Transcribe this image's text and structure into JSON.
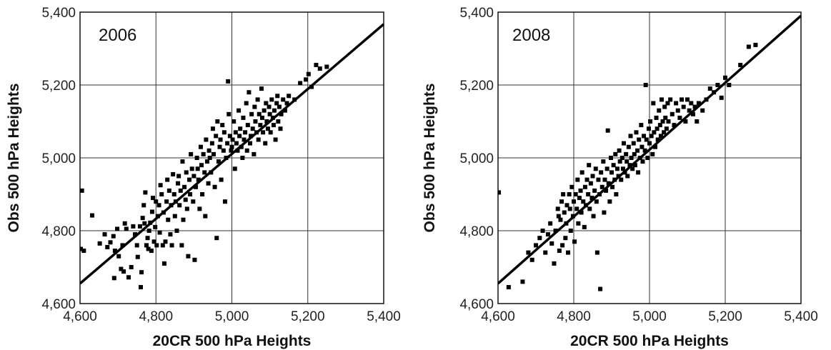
{
  "chart_data": [
    {
      "type": "scatter",
      "title": "",
      "annotation": "2006",
      "xlabel": "20CR 500 hPa Heights",
      "ylabel": "Obs 500 hPa Heights",
      "xlim": [
        4600,
        5400
      ],
      "ylim": [
        4600,
        5400
      ],
      "xticks": [
        "4,600",
        "4,800",
        "5,000",
        "5,200",
        "5,400"
      ],
      "yticks": [
        "4,600",
        "4,800",
        "5,000",
        "5,200",
        "5,400"
      ],
      "grid": true,
      "fit_line": [
        [
          4600,
          4655
        ],
        [
          5400,
          5367
        ]
      ],
      "points": [
        [
          4602,
          4750
        ],
        [
          4610,
          4745
        ],
        [
          4605,
          4910
        ],
        [
          4632,
          4842
        ],
        [
          4652,
          4765
        ],
        [
          4665,
          4790
        ],
        [
          4672,
          4755
        ],
        [
          4680,
          4768
        ],
        [
          4688,
          4785
        ],
        [
          4692,
          4745
        ],
        [
          4698,
          4805
        ],
        [
          4702,
          4730
        ],
        [
          4708,
          4695
        ],
        [
          4712,
          4760
        ],
        [
          4718,
          4820
        ],
        [
          4722,
          4805
        ],
        [
          4690,
          4670
        ],
        [
          4715,
          4688
        ],
        [
          4728,
          4672
        ],
        [
          4735,
          4700
        ],
        [
          4740,
          4812
        ],
        [
          4745,
          4790
        ],
        [
          4750,
          4760
        ],
        [
          4752,
          4728
        ],
        [
          4758,
          4812
        ],
        [
          4760,
          4645
        ],
        [
          4762,
          4686
        ],
        [
          4765,
          4835
        ],
        [
          4768,
          4870
        ],
        [
          4770,
          4820
        ],
        [
          4772,
          4905
        ],
        [
          4775,
          4760
        ],
        [
          4778,
          4780
        ],
        [
          4780,
          4750
        ],
        [
          4782,
          4800
        ],
        [
          4785,
          4822
        ],
        [
          4788,
          4745
        ],
        [
          4790,
          4852
        ],
        [
          4792,
          4890
        ],
        [
          4795,
          4770
        ],
        [
          4798,
          4810
        ],
        [
          4800,
          4880
        ],
        [
          4802,
          4760
        ],
        [
          4805,
          4840
        ],
        [
          4808,
          4870
        ],
        [
          4810,
          4795
        ],
        [
          4812,
          4925
        ],
        [
          4815,
          4900
        ],
        [
          4818,
          4760
        ],
        [
          4820,
          4850
        ],
        [
          4822,
          4710
        ],
        [
          4825,
          4770
        ],
        [
          4828,
          4880
        ],
        [
          4830,
          4940
        ],
        [
          4832,
          4830
        ],
        [
          4835,
          4910
        ],
        [
          4838,
          4790
        ],
        [
          4840,
          4870
        ],
        [
          4842,
          4760
        ],
        [
          4845,
          4955
        ],
        [
          4848,
          4900
        ],
        [
          4850,
          4840
        ],
        [
          4852,
          4880
        ],
        [
          4855,
          4800
        ],
        [
          4858,
          4930
        ],
        [
          4860,
          4950
        ],
        [
          4862,
          4870
        ],
        [
          4865,
          4910
        ],
        [
          4868,
          4760
        ],
        [
          4870,
          4990
        ],
        [
          4872,
          4830
        ],
        [
          4875,
          4920
        ],
        [
          4878,
          4885
        ],
        [
          4880,
          4960
        ],
        [
          4882,
          4860
        ],
        [
          4885,
          4730
        ],
        [
          4888,
          4940
        ],
        [
          4890,
          4900
        ],
        [
          4892,
          5010
        ],
        [
          4895,
          4970
        ],
        [
          4898,
          4880
        ],
        [
          4900,
          4950
        ],
        [
          4902,
          4720
        ],
        [
          4905,
          4920
        ],
        [
          4908,
          5000
        ],
        [
          4910,
          4970
        ],
        [
          4912,
          4940
        ],
        [
          4915,
          4860
        ],
        [
          4918,
          5030
        ],
        [
          4920,
          4980
        ],
        [
          4922,
          4900
        ],
        [
          4925,
          5010
        ],
        [
          4928,
          4960
        ],
        [
          4930,
          4840
        ],
        [
          4932,
          5050
        ],
        [
          4935,
          4990
        ],
        [
          4938,
          4930
        ],
        [
          4940,
          5020
        ],
        [
          4942,
          5000
        ],
        [
          4945,
          4960
        ],
        [
          4948,
          5040
        ],
        [
          4950,
          5080
        ],
        [
          4952,
          5010
        ],
        [
          4955,
          4920
        ],
        [
          4958,
          5060
        ],
        [
          4960,
          4780
        ],
        [
          4962,
          5100
        ],
        [
          4965,
          4990
        ],
        [
          4968,
          5030
        ],
        [
          4970,
          5050
        ],
        [
          4972,
          4940
        ],
        [
          4975,
          5090
        ],
        [
          4978,
          5020
        ],
        [
          4980,
          5070
        ],
        [
          4982,
          4880
        ],
        [
          4985,
          5000
        ],
        [
          4988,
          5040
        ],
        [
          4990,
          5210
        ],
        [
          4992,
          5120
        ],
        [
          4995,
          5060
        ],
        [
          4998,
          5020
        ],
        [
          5000,
          5030
        ],
        [
          5002,
          5050
        ],
        [
          5005,
          5100
        ],
        [
          5008,
          4970
        ],
        [
          5010,
          5070
        ],
        [
          5012,
          5040
        ],
        [
          5015,
          5020
        ],
        [
          5018,
          5130
        ],
        [
          5020,
          5060
        ],
        [
          5022,
          5080
        ],
        [
          5025,
          5030
        ],
        [
          5028,
          5000
        ],
        [
          5030,
          5110
        ],
        [
          5032,
          5050
        ],
        [
          5035,
          5070
        ],
        [
          5038,
          5150
        ],
        [
          5040,
          5020
        ],
        [
          5042,
          5090
        ],
        [
          5045,
          5180
        ],
        [
          5048,
          5040
        ],
        [
          5050,
          5060
        ],
        [
          5052,
          5120
        ],
        [
          5055,
          5080
        ],
        [
          5058,
          5010
        ],
        [
          5060,
          5140
        ],
        [
          5062,
          5100
        ],
        [
          5065,
          5070
        ],
        [
          5068,
          5160
        ],
        [
          5070,
          5050
        ],
        [
          5072,
          5120
        ],
        [
          5075,
          5090
        ],
        [
          5078,
          5190
        ],
        [
          5080,
          5110
        ],
        [
          5082,
          5070
        ],
        [
          5085,
          5130
        ],
        [
          5088,
          5040
        ],
        [
          5090,
          5150
        ],
        [
          5092,
          5100
        ],
        [
          5095,
          5080
        ],
        [
          5098,
          5140
        ],
        [
          5100,
          5120
        ],
        [
          5102,
          5070
        ],
        [
          5105,
          5160
        ],
        [
          5108,
          5110
        ],
        [
          5110,
          5090
        ],
        [
          5112,
          5130
        ],
        [
          5115,
          5050
        ],
        [
          5118,
          5150
        ],
        [
          5120,
          5170
        ],
        [
          5122,
          5100
        ],
        [
          5125,
          5140
        ],
        [
          5128,
          5080
        ],
        [
          5130,
          5120
        ],
        [
          5135,
          5160
        ],
        [
          5140,
          5130
        ],
        [
          5145,
          5150
        ],
        [
          5150,
          5170
        ],
        [
          5165,
          5160
        ],
        [
          5180,
          5205
        ],
        [
          5195,
          5215
        ],
        [
          5202,
          5230
        ],
        [
          5210,
          5195
        ],
        [
          5222,
          5255
        ],
        [
          5232,
          5245
        ],
        [
          5250,
          5250
        ]
      ]
    },
    {
      "type": "scatter",
      "title": "",
      "annotation": "2008",
      "xlabel": "20CR 500 hPa Heights",
      "ylabel": "Obs 500 hPa Heights",
      "xlim": [
        4600,
        5400
      ],
      "ylim": [
        4600,
        5400
      ],
      "xticks": [
        "4,600",
        "4,800",
        "5,000",
        "5,200",
        "5,400"
      ],
      "yticks": [
        "4,600",
        "4,800",
        "5,000",
        "5,200",
        "5,400"
      ],
      "grid": true,
      "fit_line": [
        [
          4600,
          4655
        ],
        [
          5400,
          5390
        ]
      ],
      "points": [
        [
          4602,
          4905
        ],
        [
          4628,
          4645
        ],
        [
          4665,
          4660
        ],
        [
          4680,
          4740
        ],
        [
          4690,
          4720
        ],
        [
          4700,
          4760
        ],
        [
          4710,
          4780
        ],
        [
          4718,
          4800
        ],
        [
          4725,
          4740
        ],
        [
          4732,
          4790
        ],
        [
          4738,
          4820
        ],
        [
          4742,
          4765
        ],
        [
          4748,
          4710
        ],
        [
          4752,
          4800
        ],
        [
          4758,
          4860
        ],
        [
          4760,
          4840
        ],
        [
          4762,
          4745
        ],
        [
          4765,
          4830
        ],
        [
          4768,
          4880
        ],
        [
          4770,
          4760
        ],
        [
          4772,
          4900
        ],
        [
          4775,
          4850
        ],
        [
          4778,
          4780
        ],
        [
          4780,
          4820
        ],
        [
          4782,
          4870
        ],
        [
          4785,
          4740
        ],
        [
          4788,
          4900
        ],
        [
          4790,
          4860
        ],
        [
          4792,
          4800
        ],
        [
          4795,
          4920
        ],
        [
          4798,
          4840
        ],
        [
          4800,
          4880
        ],
        [
          4802,
          4770
        ],
        [
          4805,
          4900
        ],
        [
          4808,
          4860
        ],
        [
          4810,
          4940
        ],
        [
          4812,
          4820
        ],
        [
          4815,
          4890
        ],
        [
          4818,
          4910
        ],
        [
          4820,
          4850
        ],
        [
          4822,
          4960
        ],
        [
          4825,
          4880
        ],
        [
          4828,
          4810
        ],
        [
          4830,
          4920
        ],
        [
          4832,
          4870
        ],
        [
          4835,
          4940
        ],
        [
          4838,
          4900
        ],
        [
          4840,
          4980
        ],
        [
          4842,
          4860
        ],
        [
          4845,
          4930
        ],
        [
          4848,
          4890
        ],
        [
          4850,
          4950
        ],
        [
          4852,
          4840
        ],
        [
          4855,
          4910
        ],
        [
          4858,
          4970
        ],
        [
          4860,
          4880
        ],
        [
          4862,
          4740
        ],
        [
          4865,
          4940
        ],
        [
          4868,
          4900
        ],
        [
          4870,
          4640
        ],
        [
          4872,
          4960
        ],
        [
          4875,
          4920
        ],
        [
          4878,
          4990
        ],
        [
          4880,
          4850
        ],
        [
          4882,
          4940
        ],
        [
          4885,
          4910
        ],
        [
          4888,
          4970
        ],
        [
          4890,
          5075
        ],
        [
          4892,
          4930
        ],
        [
          4895,
          4880
        ],
        [
          4898,
          5000
        ],
        [
          4900,
          4960
        ],
        [
          4902,
          4920
        ],
        [
          4905,
          4980
        ],
        [
          4908,
          4940
        ],
        [
          4910,
          5010
        ],
        [
          4912,
          4900
        ],
        [
          4915,
          4970
        ],
        [
          4918,
          4950
        ],
        [
          4920,
          5020
        ],
        [
          4922,
          4990
        ],
        [
          4925,
          4940
        ],
        [
          4928,
          5000
        ],
        [
          4930,
          4970
        ],
        [
          4932,
          5040
        ],
        [
          4935,
          4960
        ],
        [
          4938,
          5010
        ],
        [
          4940,
          4990
        ],
        [
          4942,
          4950
        ],
        [
          4945,
          5030
        ],
        [
          4948,
          4980
        ],
        [
          4950,
          5060
        ],
        [
          4952,
          5000
        ],
        [
          4955,
          4970
        ],
        [
          4958,
          5040
        ],
        [
          4960,
          5010
        ],
        [
          4962,
          4980
        ],
        [
          4965,
          5070
        ],
        [
          4968,
          5020
        ],
        [
          4970,
          4960
        ],
        [
          4972,
          5050
        ],
        [
          4975,
          5000
        ],
        [
          4978,
          5090
        ],
        [
          4980,
          5030
        ],
        [
          4982,
          4990
        ],
        [
          4985,
          5060
        ],
        [
          4988,
          5020
        ],
        [
          4990,
          5200
        ],
        [
          4992,
          5050
        ],
        [
          4995,
          5000
        ],
        [
          4998,
          5080
        ],
        [
          5000,
          5040
        ],
        [
          5002,
          5100
        ],
        [
          5005,
          5060
        ],
        [
          5008,
          5010
        ],
        [
          5010,
          5150
        ],
        [
          5012,
          5070
        ],
        [
          5015,
          5030
        ],
        [
          5018,
          5110
        ],
        [
          5020,
          5080
        ],
        [
          5022,
          5050
        ],
        [
          5025,
          5130
        ],
        [
          5028,
          5090
        ],
        [
          5030,
          5060
        ],
        [
          5032,
          5160
        ],
        [
          5035,
          5100
        ],
        [
          5038,
          5070
        ],
        [
          5040,
          5140
        ],
        [
          5042,
          5110
        ],
        [
          5045,
          5080
        ],
        [
          5048,
          5150
        ],
        [
          5050,
          5100
        ],
        [
          5055,
          5160
        ],
        [
          5060,
          5120
        ],
        [
          5065,
          5090
        ],
        [
          5070,
          5150
        ],
        [
          5075,
          5130
        ],
        [
          5080,
          5110
        ],
        [
          5085,
          5160
        ],
        [
          5090,
          5140
        ],
        [
          5095,
          5100
        ],
        [
          5100,
          5160
        ],
        [
          5105,
          5130
        ],
        [
          5110,
          5150
        ],
        [
          5115,
          5120
        ],
        [
          5120,
          5140
        ],
        [
          5125,
          5100
        ],
        [
          5130,
          5150
        ],
        [
          5140,
          5130
        ],
        [
          5150,
          5160
        ],
        [
          5160,
          5190
        ],
        [
          5170,
          5180
        ],
        [
          5180,
          5200
        ],
        [
          5190,
          5165
        ],
        [
          5200,
          5220
        ],
        [
          5210,
          5200
        ],
        [
          5240,
          5255
        ],
        [
          5262,
          5305
        ],
        [
          5280,
          5310
        ]
      ]
    }
  ]
}
